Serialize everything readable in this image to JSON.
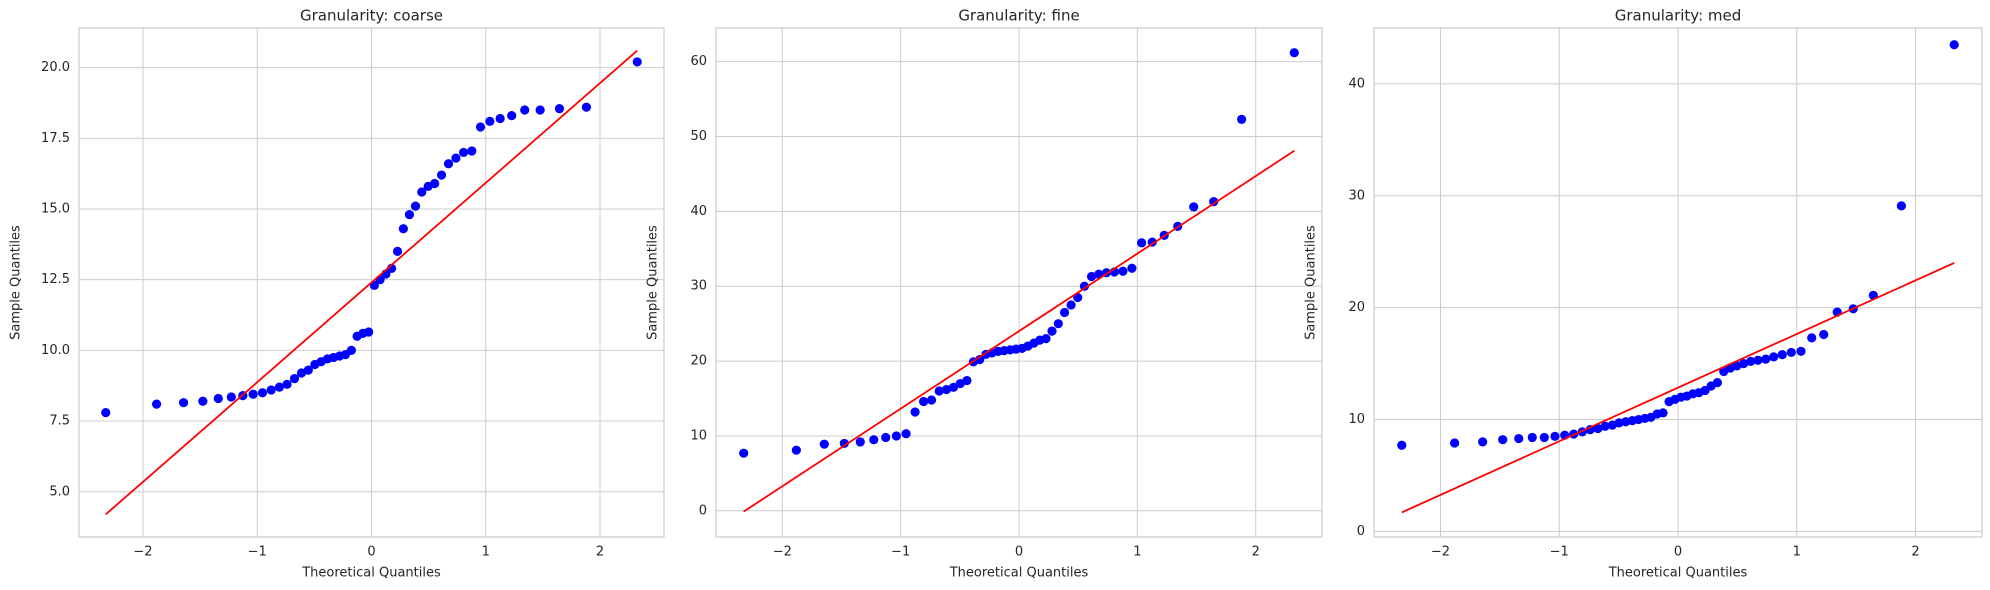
{
  "chart_data": [
    {
      "type": "scatter",
      "title": "Granularity: coarse",
      "x_label": "Theoretical Quantiles",
      "y_label": "Sample Quantiles",
      "x": [
        -2.326,
        -1.881,
        -1.645,
        -1.476,
        -1.341,
        -1.227,
        -1.126,
        -1.036,
        -0.954,
        -0.878,
        -0.806,
        -0.739,
        -0.674,
        -0.613,
        -0.553,
        -0.496,
        -0.44,
        -0.385,
        -0.332,
        -0.279,
        -0.228,
        -0.176,
        -0.126,
        -0.075,
        -0.025,
        0.025,
        0.075,
        0.126,
        0.176,
        0.228,
        0.279,
        0.332,
        0.385,
        0.44,
        0.496,
        0.553,
        0.613,
        0.674,
        0.739,
        0.806,
        0.878,
        0.954,
        1.036,
        1.126,
        1.227,
        1.341,
        1.476,
        1.645,
        1.881,
        2.326
      ],
      "values": [
        7.8,
        8.1,
        8.15,
        8.2,
        8.3,
        8.35,
        8.4,
        8.45,
        8.5,
        8.6,
        8.7,
        8.8,
        9.0,
        9.2,
        9.3,
        9.5,
        9.6,
        9.7,
        9.75,
        9.8,
        9.85,
        10.0,
        10.5,
        10.6,
        10.65,
        12.3,
        12.5,
        12.7,
        12.9,
        13.5,
        14.3,
        14.8,
        15.1,
        15.6,
        15.8,
        15.9,
        16.2,
        16.6,
        16.8,
        17.0,
        17.05,
        17.9,
        18.1,
        18.2,
        18.3,
        18.5,
        18.5,
        18.55,
        18.6,
        20.2
      ],
      "color": "#0000ff",
      "line": {
        "x": [
          -2.326,
          2.326
        ],
        "y": [
          4.2,
          20.6
        ],
        "color": "#ff0000"
      },
      "xlim": [
        -2.56,
        2.56
      ],
      "ylim": [
        3.4,
        21.4
      ],
      "xticks": [
        {
          "value": -2,
          "label": "−2"
        },
        {
          "value": -1,
          "label": "−1"
        },
        0,
        1,
        2
      ],
      "yticks": [
        {
          "value": 5,
          "label": "5.0"
        },
        7.5,
        {
          "value": 10,
          "label": "10.0"
        },
        12.5,
        {
          "value": 15,
          "label": "15.0"
        },
        17.5,
        {
          "value": 20,
          "label": "20.0"
        }
      ],
      "grid": true
    },
    {
      "type": "scatter",
      "title": "Granularity: fine",
      "x_label": "Theoretical Quantiles",
      "y_label": "Sample Quantiles",
      "x": [
        -2.326,
        -1.881,
        -1.645,
        -1.476,
        -1.341,
        -1.227,
        -1.126,
        -1.036,
        -0.954,
        -0.878,
        -0.806,
        -0.739,
        -0.674,
        -0.613,
        -0.553,
        -0.496,
        -0.44,
        -0.385,
        -0.332,
        -0.279,
        -0.228,
        -0.176,
        -0.126,
        -0.075,
        -0.025,
        0.025,
        0.075,
        0.126,
        0.176,
        0.228,
        0.279,
        0.332,
        0.385,
        0.44,
        0.496,
        0.553,
        0.613,
        0.674,
        0.739,
        0.806,
        0.878,
        0.954,
        1.036,
        1.126,
        1.227,
        1.341,
        1.476,
        1.645,
        1.881,
        2.326
      ],
      "values": [
        7.7,
        8.1,
        8.9,
        9.0,
        9.2,
        9.5,
        9.8,
        10.0,
        10.3,
        13.2,
        14.6,
        14.8,
        16.0,
        16.2,
        16.5,
        17.0,
        17.4,
        19.9,
        20.2,
        20.9,
        21.1,
        21.3,
        21.4,
        21.5,
        21.6,
        21.7,
        22.0,
        22.4,
        22.8,
        23.0,
        24.0,
        25.0,
        26.5,
        27.5,
        28.5,
        30.0,
        31.3,
        31.6,
        31.8,
        31.9,
        32.0,
        32.4,
        35.8,
        35.9,
        36.8,
        38.0,
        40.6,
        41.3,
        52.3,
        61.2
      ],
      "color": "#0000ff",
      "line": {
        "x": [
          -2.326,
          2.326
        ],
        "y": [
          -0.1,
          48.1
        ],
        "color": "#ff0000"
      },
      "xlim": [
        -2.56,
        2.56
      ],
      "ylim": [
        -3.5,
        64.5
      ],
      "xticks": [
        {
          "value": -2,
          "label": "−2"
        },
        {
          "value": -1,
          "label": "−1"
        },
        0,
        1,
        2
      ],
      "yticks": [
        0,
        10,
        20,
        30,
        40,
        50,
        60
      ],
      "grid": true
    },
    {
      "type": "scatter",
      "title": "Granularity: med",
      "x_label": "Theoretical Quantiles",
      "y_label": "Sample Quantiles",
      "x": [
        -2.326,
        -1.881,
        -1.645,
        -1.476,
        -1.341,
        -1.227,
        -1.126,
        -1.036,
        -0.954,
        -0.878,
        -0.806,
        -0.739,
        -0.674,
        -0.613,
        -0.553,
        -0.496,
        -0.44,
        -0.385,
        -0.332,
        -0.279,
        -0.228,
        -0.176,
        -0.126,
        -0.075,
        -0.025,
        0.025,
        0.075,
        0.126,
        0.176,
        0.228,
        0.279,
        0.332,
        0.385,
        0.44,
        0.496,
        0.553,
        0.613,
        0.674,
        0.739,
        0.806,
        0.878,
        0.954,
        1.036,
        1.126,
        1.227,
        1.341,
        1.476,
        1.645,
        1.881,
        2.326
      ],
      "values": [
        7.7,
        7.9,
        8.0,
        8.2,
        8.3,
        8.4,
        8.4,
        8.5,
        8.6,
        8.7,
        8.9,
        9.1,
        9.2,
        9.4,
        9.5,
        9.7,
        9.8,
        9.9,
        10.0,
        10.1,
        10.2,
        10.5,
        10.6,
        11.6,
        11.8,
        12.0,
        12.1,
        12.3,
        12.4,
        12.6,
        13.0,
        13.3,
        14.3,
        14.6,
        14.8,
        15.0,
        15.2,
        15.3,
        15.4,
        15.6,
        15.8,
        16.0,
        16.1,
        17.3,
        17.6,
        19.6,
        19.9,
        21.1,
        29.1,
        43.5
      ],
      "color": "#0000ff",
      "line": {
        "x": [
          -2.326,
          2.326
        ],
        "y": [
          1.7,
          24.0
        ],
        "color": "#ff0000"
      },
      "xlim": [
        -2.56,
        2.56
      ],
      "ylim": [
        -0.5,
        45
      ],
      "xticks": [
        {
          "value": -2,
          "label": "−2"
        },
        {
          "value": -1,
          "label": "−1"
        },
        0,
        1,
        2
      ],
      "yticks": [
        0,
        10,
        20,
        30,
        40
      ],
      "grid": true
    }
  ]
}
